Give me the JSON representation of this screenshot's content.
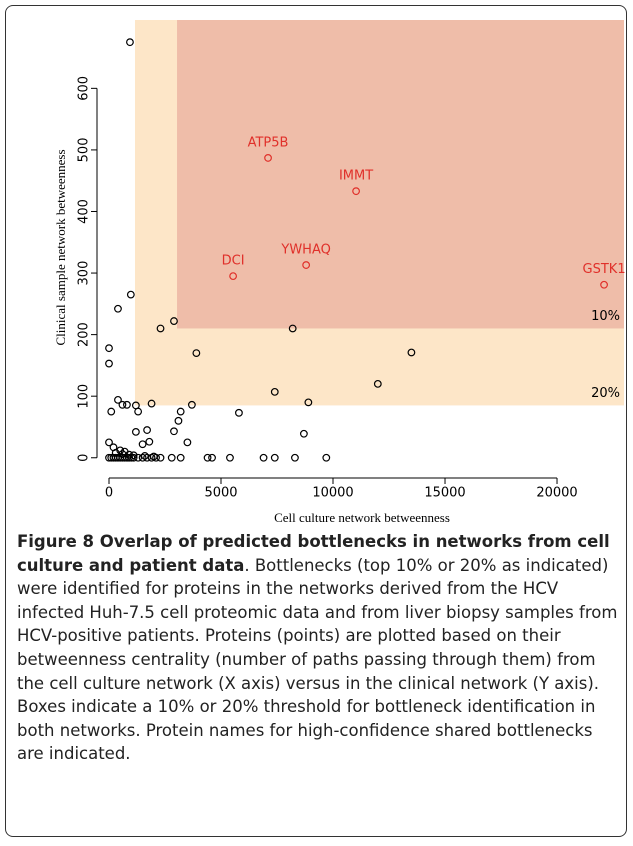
{
  "chart_data": {
    "type": "scatter",
    "xlabel": "Cell culture network betweenness",
    "ylabel": "Clinical sample network betweenness",
    "xlim": [
      -402,
      22990
    ],
    "ylim": [
      -28,
      711
    ],
    "xticks": [
      0,
      5000,
      10000,
      15000,
      20000
    ],
    "yticks": [
      0,
      100,
      200,
      300,
      400,
      500,
      600
    ],
    "regions": [
      {
        "label": "20%",
        "x": 1160,
        "y": 85,
        "color": "#fde6c8"
      },
      {
        "label": "10%",
        "x": 3036,
        "y": 210,
        "color": "#efbda9"
      }
    ],
    "series": [
      {
        "color": "#000000",
        "x": [
          935,
          975,
          400,
          0,
          0,
          2300,
          2900,
          3900,
          8200,
          13500,
          12000,
          7400,
          8900,
          5800,
          3700,
          3200,
          3100,
          2900,
          3500,
          8700,
          1900,
          1700,
          1500,
          1300,
          1200,
          800,
          600,
          400,
          100,
          0,
          200,
          1800,
          1200,
          500,
          600,
          700,
          300,
          900,
          1100,
          0,
          100,
          200,
          300,
          400,
          500,
          600,
          700,
          800,
          900,
          1000,
          1100,
          1300,
          1500,
          1700,
          1900,
          2100,
          2300,
          2800,
          3200,
          4400,
          4600,
          5400,
          6900,
          7400,
          8300,
          9700,
          2000,
          1600
        ],
        "values": [
          675,
          265,
          242,
          178,
          153,
          210,
          222,
          170,
          210,
          171,
          120,
          107,
          90,
          73,
          86,
          75,
          60,
          43,
          25,
          39,
          88,
          45,
          22,
          75,
          85,
          86,
          86,
          94,
          75,
          25,
          17,
          26,
          42,
          12,
          6,
          10,
          8,
          5,
          4,
          0,
          0,
          0,
          0,
          0,
          0,
          0,
          0,
          0,
          0,
          0,
          0,
          0,
          0,
          0,
          0,
          0,
          0,
          0,
          0,
          0,
          0,
          0,
          0,
          0,
          0,
          0,
          2,
          3
        ]
      },
      {
        "color": "#e0302a",
        "labels": [
          "ATP5B",
          "IMMT",
          "DCI",
          "YWHAQ",
          "GSTK1"
        ],
        "x": [
          7100,
          11030,
          5540,
          8800,
          22100
        ],
        "values": [
          487,
          433,
          295,
          313,
          281
        ]
      }
    ]
  },
  "caption": {
    "title": "Figure 8 Overlap of predicted bottlenecks in networks from cell culture and patient data",
    "text": ". Bottlenecks (top 10% or 20% as indicated) were identified for proteins in the networks derived from the HCV infected Huh-7.5 cell proteomic data and from liver biopsy samples from HCV-positive patients. Proteins (points) are plotted based on their betweenness centrality (number of paths passing through them) from the cell culture network (X axis) versus in the clinical network (Y axis). Boxes indicate a 10% or 20% threshold for bottleneck identification in both networks. Protein names for high-confidence shared bottlenecks are indicated."
  }
}
